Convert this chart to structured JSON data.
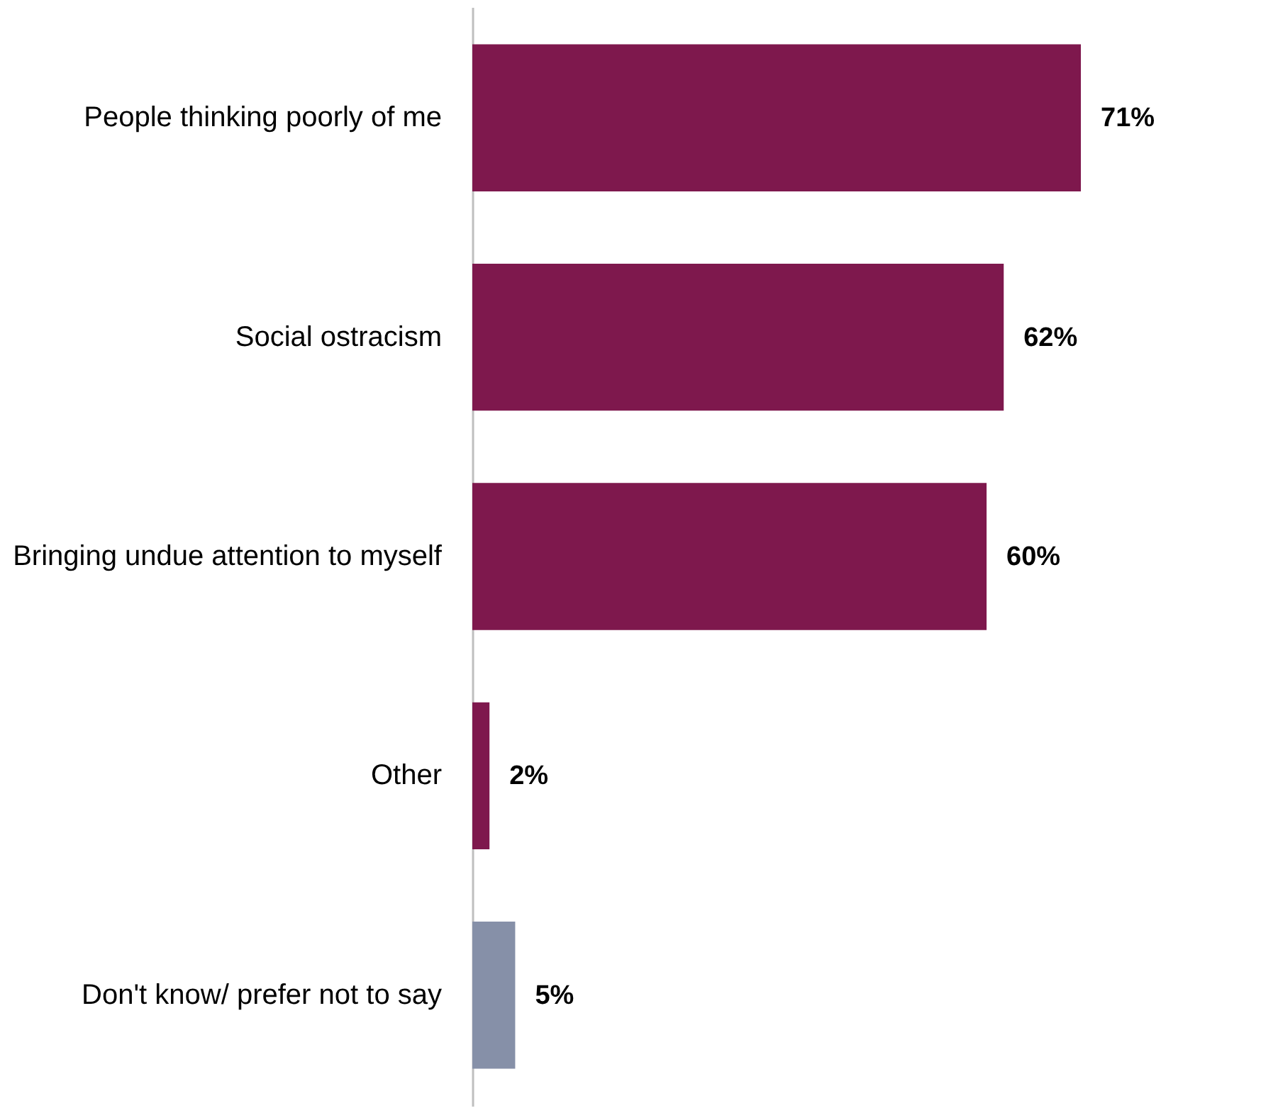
{
  "chart_data": {
    "type": "bar",
    "orientation": "horizontal",
    "categories": [
      "People thinking poorly of me",
      "Social ostracism",
      "Bringing undue attention to myself",
      "Other",
      "Don't know/ prefer not to say"
    ],
    "values": [
      71,
      62,
      60,
      2,
      5
    ],
    "colors": [
      "#7e184d",
      "#7e184d",
      "#7e184d",
      "#7e184d",
      "#8690a8"
    ],
    "value_labels": [
      "71%",
      "62%",
      "60%",
      "2%",
      "5%"
    ],
    "grid": false
  }
}
